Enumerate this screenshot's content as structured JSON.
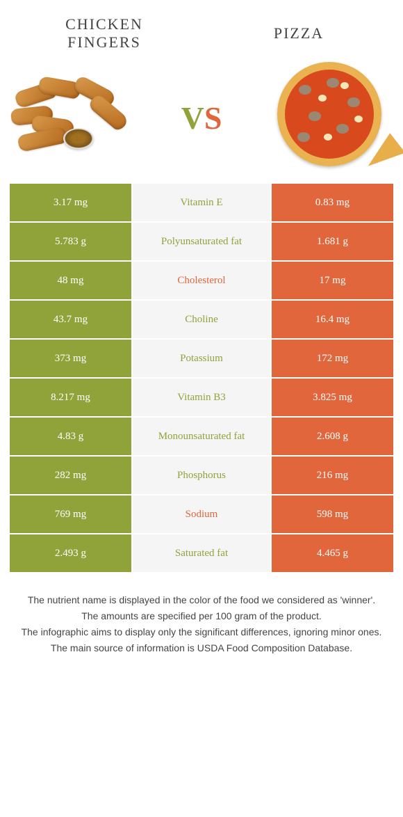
{
  "foods": {
    "left": {
      "name": "CHICKEN\nFINGERS",
      "color": "#8fa33a"
    },
    "right": {
      "name": "PIZZA",
      "color": "#e1663c"
    }
  },
  "vs": {
    "v": "V",
    "s": "S"
  },
  "colors": {
    "left_cell": "#8fa33a",
    "right_cell": "#e1663c",
    "mid_bg": "#f5f5f5",
    "label_left_win": "#8fa33a",
    "label_right_win": "#e1663c"
  },
  "rows": [
    {
      "label": "Vitamin E",
      "left": "3.17 mg",
      "right": "0.83 mg",
      "winner": "left"
    },
    {
      "label": "Polyunsaturated fat",
      "left": "5.783 g",
      "right": "1.681 g",
      "winner": "left"
    },
    {
      "label": "Cholesterol",
      "left": "48 mg",
      "right": "17 mg",
      "winner": "right"
    },
    {
      "label": "Choline",
      "left": "43.7 mg",
      "right": "16.4 mg",
      "winner": "left"
    },
    {
      "label": "Potassium",
      "left": "373 mg",
      "right": "172 mg",
      "winner": "left"
    },
    {
      "label": "Vitamin B3",
      "left": "8.217 mg",
      "right": "3.825 mg",
      "winner": "left"
    },
    {
      "label": "Monounsaturated fat",
      "left": "4.83 g",
      "right": "2.608 g",
      "winner": "left"
    },
    {
      "label": "Phosphorus",
      "left": "282 mg",
      "right": "216 mg",
      "winner": "left"
    },
    {
      "label": "Sodium",
      "left": "769 mg",
      "right": "598 mg",
      "winner": "right"
    },
    {
      "label": "Saturated fat",
      "left": "2.493 g",
      "right": "4.465 g",
      "winner": "left"
    }
  ],
  "footnotes": [
    "The nutrient name is displayed in the color of the food we considered as 'winner'.",
    "The amounts are specified per 100 gram of the product.",
    "The infographic aims to display only the significant differences, ignoring minor ones.",
    "The main source of information is USDA Food Composition Database."
  ]
}
